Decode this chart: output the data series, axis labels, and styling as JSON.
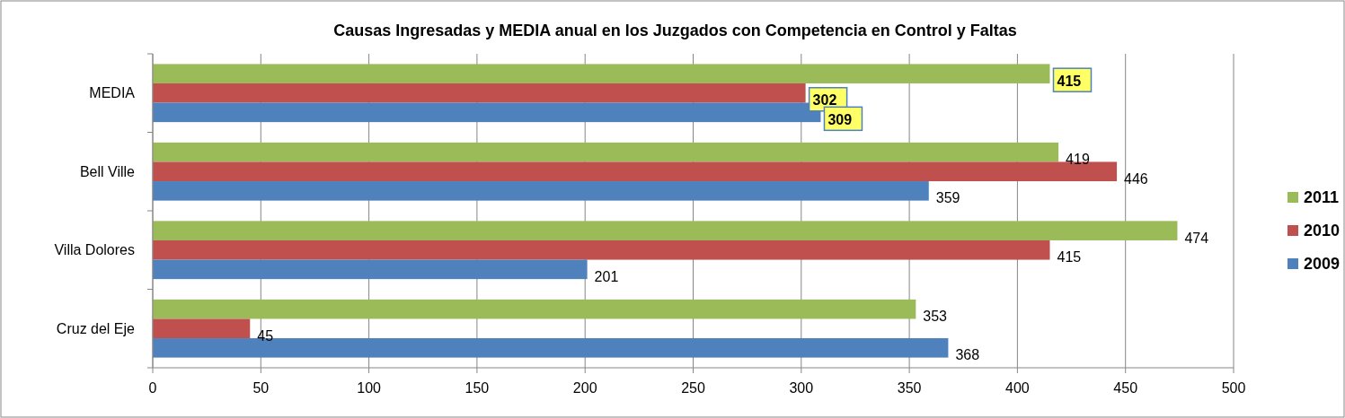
{
  "chart_data": {
    "type": "bar",
    "orientation": "horizontal",
    "title": "Causas Ingresadas y MEDIA anual en los Juzgados con Competencia en Control y Faltas",
    "categories": [
      "MEDIA",
      "Bell Ville",
      "Villa Dolores",
      "Cruz del Eje"
    ],
    "series": [
      {
        "name": "2011",
        "color": "#9bbb59",
        "values": [
          415,
          419,
          474,
          353
        ]
      },
      {
        "name": "2010",
        "color": "#c0504d",
        "values": [
          302,
          446,
          415,
          45
        ]
      },
      {
        "name": "2009",
        "color": "#4f81bd",
        "values": [
          309,
          359,
          201,
          368
        ]
      }
    ],
    "xlim": [
      0,
      500
    ],
    "xticks": [
      0,
      50,
      100,
      150,
      200,
      250,
      300,
      350,
      400,
      450,
      500
    ],
    "grid": "x",
    "legend": "right",
    "data_labels": true
  }
}
